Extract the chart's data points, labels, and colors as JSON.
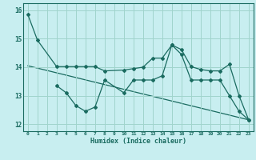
{
  "xlabel": "Humidex (Indice chaleur)",
  "bg_color": "#c8eef0",
  "line_color": "#1a6b60",
  "grid_color": "#a0d4cc",
  "xlim": [
    -0.5,
    23.5
  ],
  "ylim": [
    11.75,
    16.25
  ],
  "xticks": [
    0,
    1,
    2,
    3,
    4,
    5,
    6,
    7,
    8,
    9,
    10,
    11,
    12,
    13,
    14,
    15,
    16,
    17,
    18,
    19,
    20,
    21,
    22,
    23
  ],
  "yticks": [
    12,
    13,
    14,
    15,
    16
  ],
  "line1_x": [
    0,
    1,
    3,
    4,
    5,
    6,
    7,
    8,
    10,
    11,
    12,
    13,
    14,
    15,
    16,
    17,
    18,
    19,
    20,
    21,
    22,
    23
  ],
  "line1_y": [
    15.85,
    14.95,
    14.02,
    14.02,
    14.02,
    14.02,
    14.02,
    13.87,
    13.9,
    13.95,
    14.0,
    14.32,
    14.32,
    14.78,
    14.62,
    14.02,
    13.92,
    13.87,
    13.87,
    14.1,
    13.0,
    12.15
  ],
  "line2_x": [
    3,
    4,
    5,
    6,
    7,
    8,
    10,
    11,
    12,
    13,
    14,
    15,
    16,
    17,
    18,
    19,
    20,
    21,
    22,
    23
  ],
  "line2_y": [
    13.35,
    13.1,
    12.65,
    12.45,
    12.6,
    13.55,
    13.1,
    13.55,
    13.55,
    13.55,
    13.7,
    14.78,
    14.45,
    13.55,
    13.55,
    13.55,
    13.55,
    13.0,
    12.45,
    12.15
  ],
  "line3_x": [
    0,
    23
  ],
  "line3_y": [
    14.05,
    12.15
  ]
}
